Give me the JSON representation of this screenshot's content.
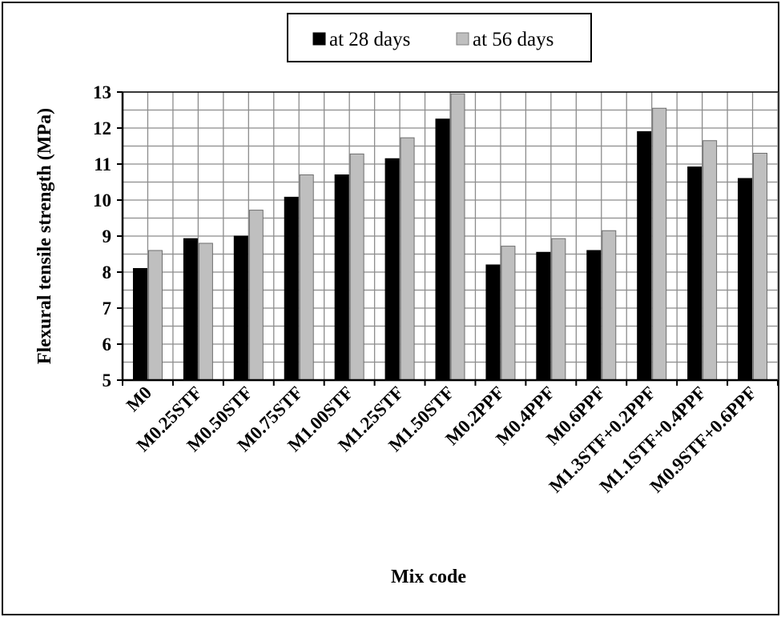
{
  "chart_data": {
    "type": "bar",
    "xlabel": "Mix code",
    "ylabel": "Flexural tensile strength (MPa)",
    "ylim": [
      5,
      13
    ],
    "yticks": [
      5,
      6,
      7,
      8,
      9,
      10,
      11,
      12,
      13
    ],
    "grid": true,
    "legend_position": "top",
    "categories": [
      "M0",
      "M0.25STF",
      "M0.50STF",
      "M0.75STF",
      "M1.00STF",
      "M1.25STF",
      "M1.50STF",
      "M0.2PPF",
      "M0.4PPF",
      "M0.6PPF",
      "M1.3STF+0.2PPF",
      "M1.1STF+0.4PPF",
      "M0.9STF+0.6PPF"
    ],
    "series": [
      {
        "name": "at 28 days",
        "color": "#000000",
        "values": [
          8.1,
          8.93,
          9.0,
          10.08,
          10.7,
          11.15,
          12.25,
          8.2,
          8.55,
          8.6,
          11.9,
          10.92,
          10.6
        ]
      },
      {
        "name": "at 56 days",
        "color": "#bfbfbf",
        "values": [
          8.6,
          8.8,
          9.72,
          10.7,
          11.28,
          11.73,
          12.95,
          8.72,
          8.93,
          9.15,
          12.55,
          11.65,
          11.3
        ]
      }
    ]
  }
}
